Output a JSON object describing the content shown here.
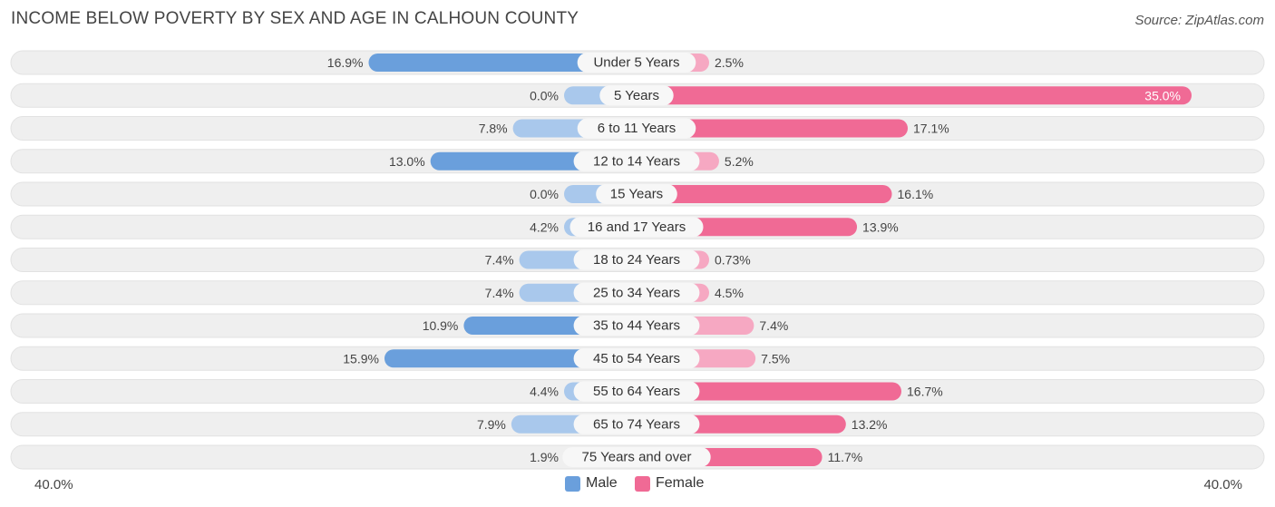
{
  "title": "INCOME BELOW POVERTY BY SEX AND AGE IN CALHOUN COUNTY",
  "source": "Source: ZipAtlas.com",
  "colors": {
    "male_strong": "#6a9fdc",
    "male_light": "#a9c8ec",
    "female_strong": "#f06a95",
    "female_light": "#f6a8c2",
    "row_bg": "#efefef"
  },
  "chart_data": {
    "type": "bar",
    "orientation": "horizontal-diverging",
    "title": "INCOME BELOW POVERTY BY SEX AND AGE IN CALHOUN COUNTY",
    "categories": [
      "Under 5 Years",
      "5 Years",
      "6 to 11 Years",
      "12 to 14 Years",
      "15 Years",
      "16 and 17 Years",
      "18 to 24 Years",
      "25 to 34 Years",
      "35 to 44 Years",
      "45 to 54 Years",
      "55 to 64 Years",
      "65 to 74 Years",
      "75 Years and over"
    ],
    "series": [
      {
        "name": "Male",
        "values": [
          16.9,
          0.0,
          7.8,
          13.0,
          0.0,
          4.2,
          7.4,
          7.4,
          10.9,
          15.9,
          4.4,
          7.9,
          1.9
        ],
        "labels": [
          "16.9%",
          "0.0%",
          "7.8%",
          "13.0%",
          "0.0%",
          "4.2%",
          "7.4%",
          "7.4%",
          "10.9%",
          "15.9%",
          "4.4%",
          "7.9%",
          "1.9%"
        ]
      },
      {
        "name": "Female",
        "values": [
          2.5,
          35.0,
          17.1,
          5.2,
          16.1,
          13.9,
          0.73,
          4.5,
          7.4,
          7.5,
          16.7,
          13.2,
          11.7
        ],
        "labels": [
          "2.5%",
          "35.0%",
          "17.1%",
          "5.2%",
          "16.1%",
          "13.9%",
          "0.73%",
          "4.5%",
          "7.4%",
          "7.5%",
          "16.7%",
          "13.2%",
          "11.7%"
        ]
      }
    ],
    "xlim": [
      -40,
      40
    ],
    "axis_labels": {
      "left": "40.0%",
      "right": "40.0%"
    },
    "legend": {
      "position": "bottom-center",
      "entries": [
        "Male",
        "Female"
      ]
    }
  }
}
